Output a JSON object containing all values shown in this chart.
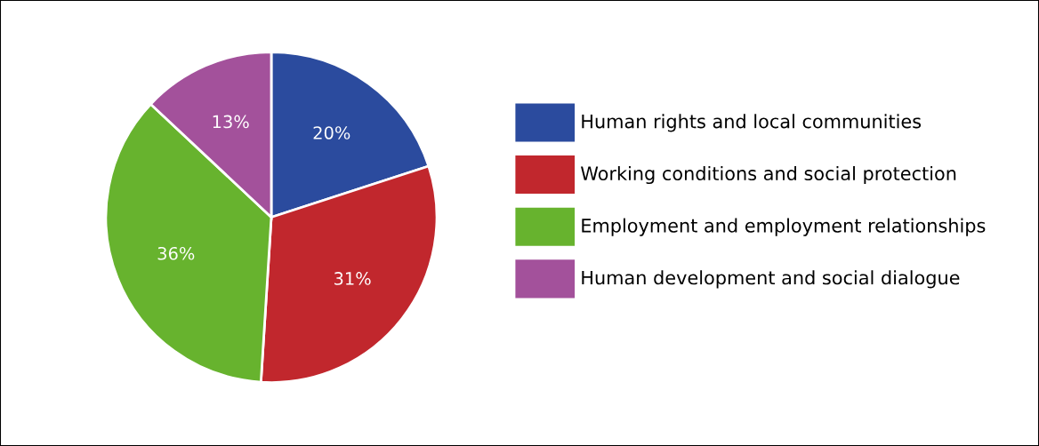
{
  "chart_data": {
    "type": "pie",
    "categories": [
      "Human rights and local communities",
      "Working conditions and social protection",
      "Employment and employment relationships",
      "Human development and social dialogue"
    ],
    "values": [
      20,
      31,
      36,
      13
    ],
    "value_labels": [
      "20%",
      "31%",
      "36%",
      "13%"
    ],
    "colors": [
      "#2b4b9e",
      "#c1272d",
      "#67b32e",
      "#a3519b"
    ],
    "legend": "right"
  }
}
